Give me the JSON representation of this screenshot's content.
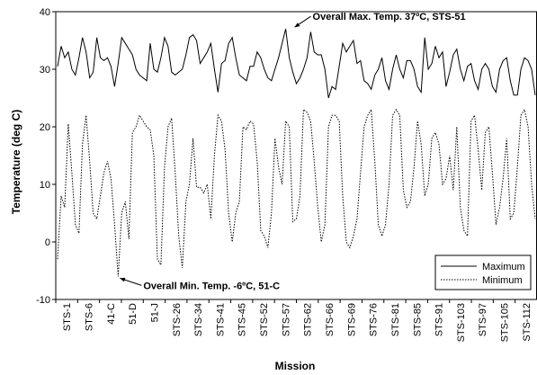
{
  "chart_data": {
    "type": "line",
    "xlabel": "Mission",
    "ylabel": "Temperature (deg C)",
    "ylim": [
      -10,
      40
    ],
    "yticks": [
      -10,
      0,
      10,
      20,
      30,
      40
    ],
    "grid": false,
    "legend_position": "bottom-right",
    "tick_labels": [
      "STS-1",
      "STS-6",
      "41-C",
      "51-D",
      "51-J",
      "STS-26",
      "STS-34",
      "STS-41",
      "STS-45",
      "STS-52",
      "STS-57",
      "STS-62",
      "STS-66",
      "STS-69",
      "STS-76",
      "STS-81",
      "STS-85",
      "STS-91",
      "STS-103",
      "STS-97",
      "STS-105",
      "STS-112"
    ],
    "annotations": [
      {
        "text": "Overall Max. Temp. 37ºC, STS-51",
        "point": [
          66,
          37
        ],
        "placement": "right"
      },
      {
        "text": "Overall Min. Temp. -6ºC, 51-C",
        "point": [
          17,
          -6
        ],
        "placement": "right"
      }
    ],
    "series": [
      {
        "name": "Maximum",
        "style": "solid",
        "color": "#000000",
        "values": [
          30.5,
          34,
          32,
          33,
          30,
          29,
          32,
          35.5,
          33,
          28.5,
          29.5,
          35.5,
          32,
          31.5,
          32,
          30.5,
          27,
          31,
          35.5,
          34.5,
          33.5,
          32.5,
          30,
          29,
          28.5,
          28,
          34.5,
          30,
          29.5,
          32,
          35.5,
          34,
          29.5,
          29,
          29.5,
          30,
          32.5,
          35.5,
          36,
          35,
          31,
          32,
          33,
          34.5,
          30,
          26,
          31,
          31.5,
          34.5,
          35.5,
          32,
          29,
          28.5,
          28,
          30.5,
          30.5,
          33,
          32,
          30,
          28.5,
          28,
          30,
          32,
          34.5,
          37,
          32,
          29.5,
          27.5,
          28.5,
          30,
          32,
          36.5,
          33,
          32.5,
          32.5,
          30,
          25,
          27,
          26.5,
          30.5,
          34.5,
          33,
          34,
          35,
          31,
          31.5,
          28,
          27.5,
          26.5,
          29,
          30,
          32,
          28,
          26.5,
          30,
          32.5,
          30,
          28.5,
          31.5,
          31.5,
          30,
          27,
          26,
          35.5,
          30,
          31,
          34,
          32,
          33,
          27,
          29.5,
          32.5,
          33.5,
          30,
          28,
          30.5,
          31,
          28,
          26.5,
          30,
          31,
          30,
          27,
          26,
          30,
          31.5,
          32,
          28,
          25.5,
          25.5,
          30,
          32,
          31.5,
          30,
          25.5
        ],
        "note": "values read approximately along the mission axis"
      },
      {
        "name": "Minimum",
        "style": "dotted",
        "color": "#000000",
        "values": [
          -3,
          8,
          6,
          20.5,
          12,
          3,
          1.5,
          17,
          22,
          14,
          5,
          4,
          8,
          12,
          14,
          11,
          3,
          -6,
          5,
          7,
          0.5,
          19,
          20,
          22,
          21,
          20,
          19.5,
          15,
          -3,
          -4,
          13,
          20,
          21.5,
          12,
          1,
          -4.5,
          7,
          10,
          18,
          9.5,
          9.5,
          8.5,
          10,
          4,
          15,
          22,
          21,
          16,
          5,
          0,
          5,
          7,
          20,
          19.5,
          21,
          20.5,
          14,
          2,
          1,
          -1,
          5,
          18,
          13,
          10,
          21,
          20,
          3.5,
          4,
          8,
          23,
          22.5,
          21,
          14,
          6,
          0,
          3,
          20,
          22,
          22,
          21,
          8,
          0,
          -1,
          1,
          4,
          12,
          20,
          22,
          23,
          14,
          3,
          1,
          3,
          10,
          22,
          23,
          22,
          9,
          6,
          7,
          13,
          21,
          17,
          8,
          10,
          18,
          19,
          17,
          10,
          11,
          15,
          9,
          20,
          6,
          2,
          1,
          21,
          22,
          16,
          9,
          19,
          20,
          12,
          3,
          6,
          11,
          18,
          4,
          5,
          13,
          22,
          23,
          20,
          10,
          4
        ],
        "note": "values read approximately along the mission axis"
      }
    ]
  }
}
